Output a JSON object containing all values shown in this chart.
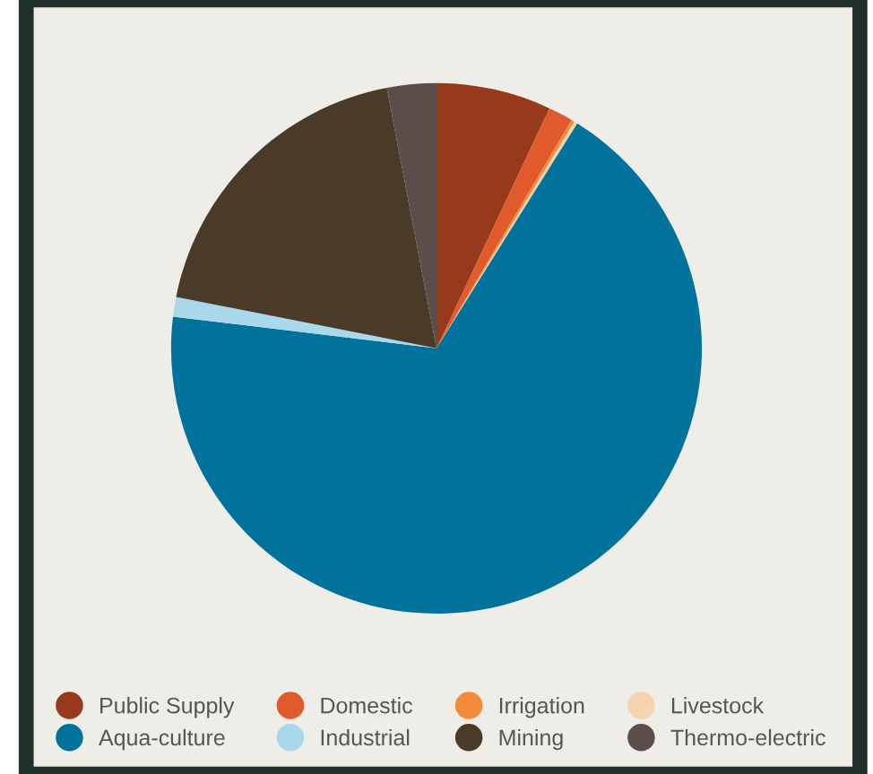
{
  "chart_data": {
    "type": "pie",
    "categories": [
      "Public Supply",
      "Domestic",
      "Irrigation",
      "Livestock",
      "Aqua-culture",
      "Industrial",
      "Mining",
      "Thermo-electric"
    ],
    "values": [
      7,
      1.5,
      0.2,
      0.2,
      68,
      1.2,
      18.9,
      3
    ],
    "colors": [
      "#973a1c",
      "#e05a2b",
      "#f28c38",
      "#f5d5b0",
      "#00729c",
      "#a8d8ea",
      "#4a3a28",
      "#5b4e4a"
    ],
    "legend": "bottom"
  }
}
